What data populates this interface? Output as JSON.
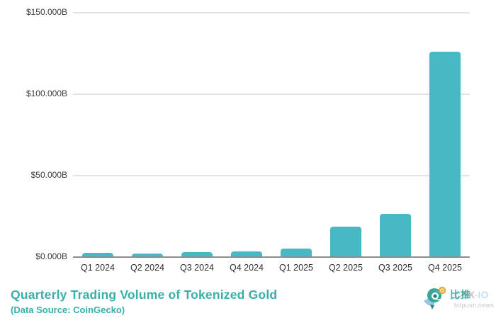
{
  "chart_data": {
    "type": "bar",
    "title": "Quarterly Trading Volume of Tokenized Gold",
    "subtitle": "(Data Source: CoinGecko)",
    "categories": [
      "Q1 2024",
      "Q2 2024",
      "Q3 2024",
      "Q4 2024",
      "Q1 2025",
      "Q2 2025",
      "Q3 2025",
      "Q4 2025"
    ],
    "values": [
      2.8,
      2.2,
      3.0,
      3.5,
      5.4,
      18.7,
      26.5,
      126.0
    ],
    "unit": "USD billions",
    "xlabel": "",
    "ylabel": "",
    "ylim": [
      0,
      150
    ],
    "yticks": [
      0,
      50,
      100,
      150
    ],
    "ytick_labels": [
      "$0.000B",
      "$50.000B",
      "$100.000B",
      "$150.000B"
    ],
    "grid": true,
    "legend": "none",
    "bar_color": "#48b9c4"
  },
  "footer": {
    "title": "Quarterly Trading Volume of Tokenized Gold",
    "subtitle": "(Data Source: CoinGecko)"
  },
  "watermark": {
    "brand_cn": "比推",
    "cex": "CEX",
    "dot": "·",
    "io": "IO",
    "site": "bitpush.news"
  },
  "colors": {
    "bar": "#48b9c4",
    "title_teal": "#35b1a8",
    "axis_text": "#3a3a3a",
    "gridline": "#e4e4e4",
    "baseline": "#8d8d8d",
    "coin_orange": "#f2b03c",
    "wing_blue": "#8fc3e4",
    "bird_teal": "#2ba393"
  }
}
